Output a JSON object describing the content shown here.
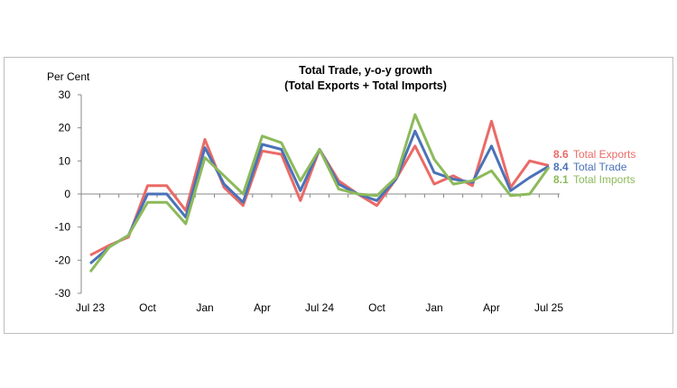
{
  "chart_data": {
    "type": "line",
    "title": "Total Trade, y-o-y growth",
    "subtitle": "(Total Exports + Total Imports)",
    "ylabel": "Per Cent",
    "xlabel": "",
    "ylim": [
      -30,
      30
    ],
    "yticks": [
      30,
      20,
      10,
      0,
      -10,
      -20,
      -30
    ],
    "x": [
      "Jul 23",
      "Aug 23",
      "Sep 23",
      "Oct 23",
      "Nov 23",
      "Dec 23",
      "Jan 24",
      "Feb 24",
      "Mar 24",
      "Apr 24",
      "May 24",
      "Jun 24",
      "Jul 24",
      "Aug 24",
      "Sep 24",
      "Oct 24",
      "Nov 24",
      "Dec 24",
      "Jan 25",
      "Feb 25",
      "Mar 25",
      "Apr 25",
      "May 25",
      "Jun 25",
      "Jul 25"
    ],
    "xtick_labels": [
      {
        "index": 0,
        "label": "Jul 23"
      },
      {
        "index": 3,
        "label": "Oct"
      },
      {
        "index": 6,
        "label": "Jan"
      },
      {
        "index": 9,
        "label": "Apr"
      },
      {
        "index": 12,
        "label": "Jul 24"
      },
      {
        "index": 15,
        "label": "Oct"
      },
      {
        "index": 18,
        "label": "Jan"
      },
      {
        "index": 21,
        "label": "Apr"
      },
      {
        "index": 24,
        "label": "Jul 25"
      }
    ],
    "grid": false,
    "series": [
      {
        "name": "Total Exports",
        "color": "#ea6a66",
        "last_label": "8.6",
        "values": [
          -18.5,
          -15.5,
          -13,
          2.5,
          2.5,
          -5,
          16.5,
          2,
          -3.5,
          13,
          12,
          -2,
          13.5,
          4,
          0,
          -3.5,
          4.5,
          14.5,
          3,
          5.5,
          2.5,
          22,
          2,
          10,
          8.6
        ]
      },
      {
        "name": "Total Trade",
        "color": "#4a72b8",
        "last_label": "8.4",
        "values": [
          -21,
          -16,
          -12.5,
          0,
          0,
          -7,
          14,
          3,
          -2.5,
          15,
          13.5,
          1,
          13.5,
          3,
          0,
          -2,
          4.5,
          19,
          6.5,
          4.5,
          3.5,
          14.5,
          1,
          5,
          8.4
        ]
      },
      {
        "name": "Total Imports",
        "color": "#8cba5a",
        "last_label": "8.1",
        "values": [
          -23.5,
          -16,
          -12.5,
          -2.5,
          -2.5,
          -9,
          11,
          5.5,
          0,
          17.5,
          15.5,
          4,
          13.5,
          1.5,
          0,
          -0.5,
          5,
          24,
          10.5,
          3,
          4,
          7,
          -0.5,
          0,
          8.1
        ]
      }
    ]
  }
}
